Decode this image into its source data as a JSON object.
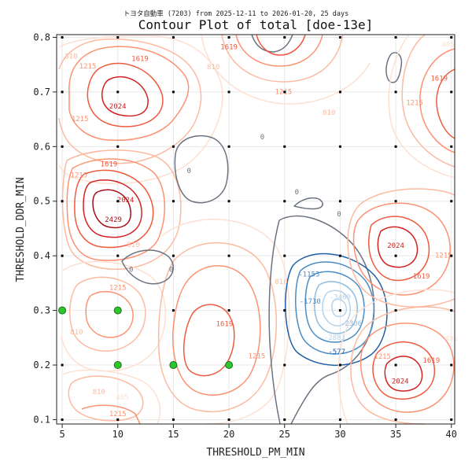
{
  "chart_data": {
    "type": "contour",
    "subtitle": "トヨタ自動車 (7203) from 2025-12-11 to 2026-01-20, 25 days",
    "title": "Contour Plot of total [doe-13e]",
    "xlabel": "THRESHOLD_PM_MIN",
    "ylabel": "THRESHOLD_DDR_MIN",
    "xlim": [
      4.5,
      40.3
    ],
    "ylim": [
      0.092,
      0.805
    ],
    "xticks": [
      "5",
      "10",
      "15",
      "20",
      "25",
      "30",
      "35",
      "40"
    ],
    "yticks": [
      "0.1",
      "0.2",
      "0.3",
      "0.4",
      "0.5",
      "0.6",
      "0.7",
      "0.8"
    ],
    "contour_levels": [
      "-3460",
      "-2883",
      "-2306",
      "-1730",
      "-1153",
      "-577",
      "0",
      "405",
      "810",
      "1215",
      "1619",
      "2024",
      "2429"
    ],
    "contour_labels": [
      {
        "x": 5.8,
        "y": 0.765,
        "text": "810",
        "level": 810
      },
      {
        "x": 7.3,
        "y": 0.747,
        "text": "1215",
        "level": 1215
      },
      {
        "x": 12.0,
        "y": 0.76,
        "text": "1619",
        "level": 1619
      },
      {
        "x": 10.0,
        "y": 0.673,
        "text": "2024",
        "level": 2024
      },
      {
        "x": 6.6,
        "y": 0.65,
        "text": "1215",
        "level": 1215
      },
      {
        "x": 18.6,
        "y": 0.745,
        "text": "810",
        "level": 810
      },
      {
        "x": 24.9,
        "y": 0.7,
        "text": "1215",
        "level": 1215
      },
      {
        "x": 20.0,
        "y": 0.782,
        "text": "1619",
        "level": 1619
      },
      {
        "x": 16.4,
        "y": 0.555,
        "text": "0",
        "level": 0
      },
      {
        "x": 23.0,
        "y": 0.617,
        "text": "0",
        "level": 0
      },
      {
        "x": 29.0,
        "y": 0.662,
        "text": "810",
        "level": 810
      },
      {
        "x": 36.7,
        "y": 0.68,
        "text": "1215",
        "level": 1215
      },
      {
        "x": 38.9,
        "y": 0.724,
        "text": "1619",
        "level": 1619
      },
      {
        "x": 39.7,
        "y": 0.786,
        "text": "405",
        "level": 405
      },
      {
        "x": 6.5,
        "y": 0.547,
        "text": "1215",
        "level": 1215
      },
      {
        "x": 9.2,
        "y": 0.567,
        "text": "1619",
        "level": 1619
      },
      {
        "x": 10.7,
        "y": 0.502,
        "text": "2024",
        "level": 2024
      },
      {
        "x": 9.6,
        "y": 0.466,
        "text": "2429",
        "level": 2429
      },
      {
        "x": 11.4,
        "y": 0.42,
        "text": "810",
        "level": 810
      },
      {
        "x": 11.2,
        "y": 0.374,
        "text": "0",
        "level": 0
      },
      {
        "x": 14.8,
        "y": 0.374,
        "text": "0",
        "level": 0
      },
      {
        "x": 26.1,
        "y": 0.516,
        "text": "0",
        "level": 0
      },
      {
        "x": 29.9,
        "y": 0.476,
        "text": "0",
        "level": 0
      },
      {
        "x": 10.0,
        "y": 0.341,
        "text": "1215",
        "level": 1215
      },
      {
        "x": 24.7,
        "y": 0.352,
        "text": "810",
        "level": 810
      },
      {
        "x": 19.6,
        "y": 0.275,
        "text": "1619",
        "level": 1619
      },
      {
        "x": 22.5,
        "y": 0.216,
        "text": "1215",
        "level": 1215
      },
      {
        "x": 6.3,
        "y": 0.26,
        "text": "810",
        "level": 810
      },
      {
        "x": 8.3,
        "y": 0.15,
        "text": "810",
        "level": 810
      },
      {
        "x": 10.4,
        "y": 0.14,
        "text": "405",
        "level": 405
      },
      {
        "x": 10.0,
        "y": 0.11,
        "text": "1215",
        "level": 1215
      },
      {
        "x": 27.2,
        "y": 0.366,
        "text": "-1153",
        "level": -1153
      },
      {
        "x": 27.3,
        "y": 0.316,
        "text": "-1730",
        "level": -1730
      },
      {
        "x": 30.0,
        "y": 0.324,
        "text": "-3460",
        "level": -3460
      },
      {
        "x": 31.0,
        "y": 0.276,
        "text": "-2306",
        "level": -2306
      },
      {
        "x": 29.5,
        "y": 0.25,
        "text": "-2883",
        "level": -2883
      },
      {
        "x": 29.7,
        "y": 0.224,
        "text": "-577",
        "level": -577
      },
      {
        "x": 35.0,
        "y": 0.418,
        "text": "2024",
        "level": 2024
      },
      {
        "x": 37.3,
        "y": 0.362,
        "text": "1619",
        "level": 1619
      },
      {
        "x": 39.3,
        "y": 0.4,
        "text": "1215",
        "level": 1215
      },
      {
        "x": 33.8,
        "y": 0.215,
        "text": "1215",
        "level": 1215
      },
      {
        "x": 35.4,
        "y": 0.17,
        "text": "2024",
        "level": 2024
      },
      {
        "x": 38.2,
        "y": 0.208,
        "text": "1619",
        "level": 1619
      },
      {
        "x": 40.0,
        "y": 0.248,
        "text": "405",
        "level": 405
      }
    ],
    "sample_points": [
      {
        "x": 5,
        "y": 0.1
      },
      {
        "x": 5,
        "y": 0.2
      },
      {
        "x": 5,
        "y": 0.3
      },
      {
        "x": 5,
        "y": 0.4
      },
      {
        "x": 5,
        "y": 0.5
      },
      {
        "x": 5,
        "y": 0.6
      },
      {
        "x": 5,
        "y": 0.7
      },
      {
        "x": 5,
        "y": 0.8
      },
      {
        "x": 10,
        "y": 0.1
      },
      {
        "x": 10,
        "y": 0.2
      },
      {
        "x": 10,
        "y": 0.3
      },
      {
        "x": 10,
        "y": 0.4
      },
      {
        "x": 10,
        "y": 0.5
      },
      {
        "x": 10,
        "y": 0.6
      },
      {
        "x": 10,
        "y": 0.7
      },
      {
        "x": 10,
        "y": 0.8
      },
      {
        "x": 15,
        "y": 0.1
      },
      {
        "x": 15,
        "y": 0.2
      },
      {
        "x": 15,
        "y": 0.3
      },
      {
        "x": 15,
        "y": 0.4
      },
      {
        "x": 15,
        "y": 0.5
      },
      {
        "x": 15,
        "y": 0.6
      },
      {
        "x": 15,
        "y": 0.7
      },
      {
        "x": 15,
        "y": 0.8
      },
      {
        "x": 20,
        "y": 0.1
      },
      {
        "x": 20,
        "y": 0.2
      },
      {
        "x": 20,
        "y": 0.3
      },
      {
        "x": 20,
        "y": 0.4
      },
      {
        "x": 20,
        "y": 0.5
      },
      {
        "x": 20,
        "y": 0.6
      },
      {
        "x": 20,
        "y": 0.7
      },
      {
        "x": 20,
        "y": 0.8
      },
      {
        "x": 25,
        "y": 0.1
      },
      {
        "x": 25,
        "y": 0.2
      },
      {
        "x": 25,
        "y": 0.3
      },
      {
        "x": 25,
        "y": 0.4
      },
      {
        "x": 25,
        "y": 0.5
      },
      {
        "x": 25,
        "y": 0.6
      },
      {
        "x": 25,
        "y": 0.7
      },
      {
        "x": 25,
        "y": 0.8
      },
      {
        "x": 30,
        "y": 0.1
      },
      {
        "x": 30,
        "y": 0.2
      },
      {
        "x": 30,
        "y": 0.3
      },
      {
        "x": 30,
        "y": 0.4
      },
      {
        "x": 30,
        "y": 0.5
      },
      {
        "x": 30,
        "y": 0.6
      },
      {
        "x": 30,
        "y": 0.7
      },
      {
        "x": 30,
        "y": 0.8
      },
      {
        "x": 35,
        "y": 0.1
      },
      {
        "x": 35,
        "y": 0.2
      },
      {
        "x": 35,
        "y": 0.3
      },
      {
        "x": 35,
        "y": 0.4
      },
      {
        "x": 35,
        "y": 0.5
      },
      {
        "x": 35,
        "y": 0.6
      },
      {
        "x": 35,
        "y": 0.7
      },
      {
        "x": 35,
        "y": 0.8
      },
      {
        "x": 40,
        "y": 0.1
      },
      {
        "x": 40,
        "y": 0.2
      },
      {
        "x": 40,
        "y": 0.3
      },
      {
        "x": 40,
        "y": 0.4
      },
      {
        "x": 40,
        "y": 0.5
      },
      {
        "x": 40,
        "y": 0.6
      },
      {
        "x": 40,
        "y": 0.7
      },
      {
        "x": 40,
        "y": 0.8
      }
    ],
    "highlight_points": [
      {
        "x": 5,
        "y": 0.3
      },
      {
        "x": 10,
        "y": 0.3
      },
      {
        "x": 10,
        "y": 0.2
      },
      {
        "x": 15,
        "y": 0.2
      },
      {
        "x": 20,
        "y": 0.2
      }
    ],
    "colors": {
      "zero": "#6b7280",
      "neg_deep": "#1f5fa8",
      "neg_mid": "#4a8cc4",
      "neg_light": "#8fbcdd",
      "neg_pale": "#b7d3ea",
      "pos_405": "#fde0d2",
      "pos_810": "#fcbba1",
      "pos_1215": "#fc9272",
      "pos_1619": "#ef5a3c",
      "pos_2024": "#d32020",
      "pos_2429": "#a50f15",
      "highlight_fill": "#2fc52f",
      "highlight_edge": "#1a6e1a",
      "grid": "#e8e8e8"
    },
    "grid": true
  }
}
